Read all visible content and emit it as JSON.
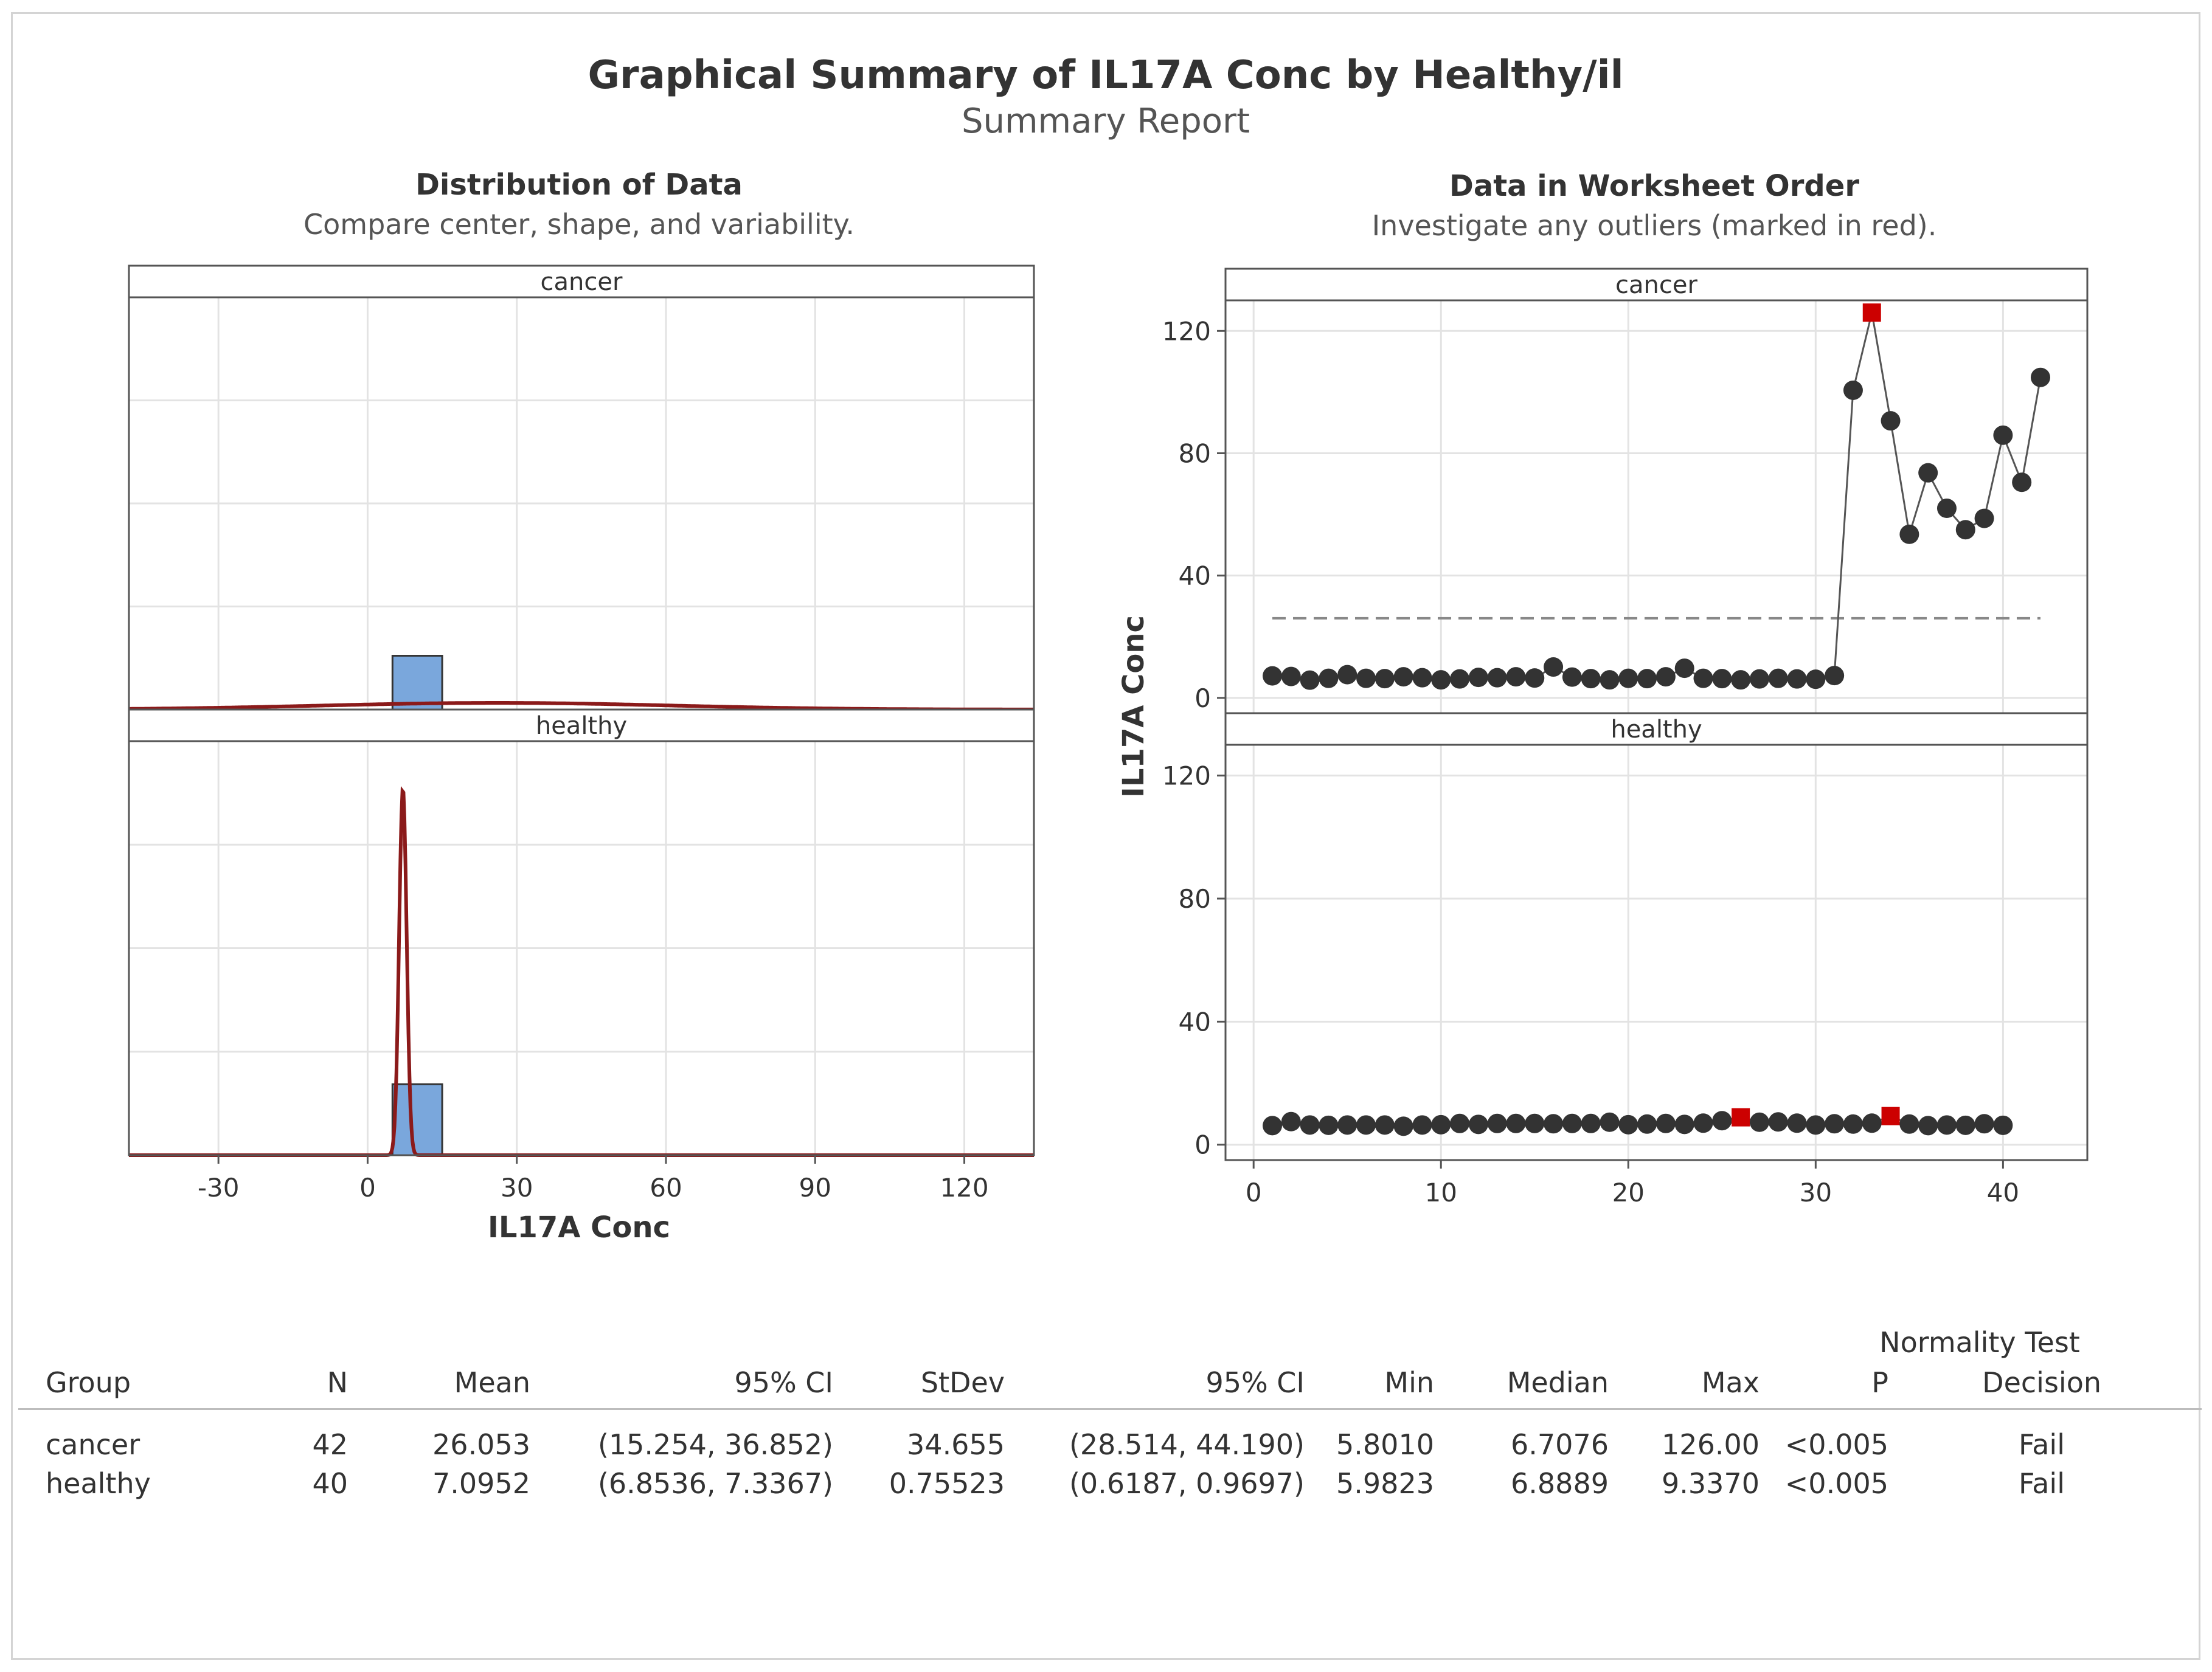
{
  "report": {
    "title": "Graphical Summary of IL17A Conc by Healthy/il",
    "subtitle": "Summary Report"
  },
  "colors": {
    "bar_fill": "#7aa7dc",
    "bar_stroke": "#333333",
    "normal_curve": "#8b1a1a",
    "point": "#333333",
    "outlier": "#cc0000",
    "mean_line": "#888888",
    "grid": "#e3e3e3"
  },
  "chart_data": [
    {
      "type": "bar",
      "name": "distribution",
      "title": "Distribution of Data",
      "subtitle": "Compare center, shape, and variability.",
      "xlabel": "IL17A Conc",
      "xlim": [
        -48,
        134
      ],
      "x_ticks": [
        -30,
        0,
        30,
        60,
        90,
        120
      ],
      "ylim": [
        0,
        1.05
      ],
      "bin_width": 10,
      "grid": true,
      "panels": [
        {
          "label": "cancer",
          "bins": [
            {
              "x0": 5,
              "x1": 15,
              "height": 0.137
            }
          ],
          "curve": {
            "type": "normal",
            "mean": 26.053,
            "sd": 34.655,
            "peak": 0.017
          }
        },
        {
          "label": "healthy",
          "bins": [
            {
              "x0": 5,
              "x1": 15,
              "height": 0.18
            }
          ],
          "curve": {
            "type": "normal",
            "mean": 7.0952,
            "sd": 0.75523,
            "peak": 0.93
          }
        }
      ]
    },
    {
      "type": "scatter",
      "name": "worksheet_order",
      "title": "Data in Worksheet Order",
      "subtitle": "Investigate any outliers (marked in red).",
      "ylabel": "IL17A Conc",
      "xlim": [
        -1.5,
        44.5
      ],
      "ylim": [
        -5,
        130
      ],
      "x_ticks": [
        0,
        10,
        20,
        30,
        40
      ],
      "y_ticks": [
        0,
        40,
        80,
        120
      ],
      "grid": true,
      "panels": [
        {
          "label": "cancer",
          "mean": 26.053,
          "values": [
            7.2,
            7.0,
            5.8,
            6.4,
            7.6,
            6.4,
            6.3,
            6.9,
            6.6,
            5.9,
            6.2,
            6.7,
            6.6,
            6.9,
            6.5,
            10.1,
            6.8,
            6.3,
            5.9,
            6.4,
            6.3,
            6.9,
            9.7,
            6.4,
            6.3,
            5.9,
            6.2,
            6.4,
            6.2,
            6.1,
            7.3,
            100.6,
            126.0,
            90.6,
            53.5,
            73.6,
            62.0,
            55.0,
            58.7,
            85.9,
            70.5,
            104.8
          ],
          "outliers": [
            33
          ]
        },
        {
          "label": "healthy",
          "mean": 7.0952,
          "values": [
            6.2,
            7.5,
            6.4,
            6.3,
            6.4,
            6.4,
            6.4,
            6.0,
            6.4,
            6.5,
            6.9,
            6.6,
            6.9,
            6.9,
            6.9,
            6.8,
            6.9,
            6.9,
            7.3,
            6.5,
            6.7,
            6.9,
            6.6,
            7.0,
            7.8,
            8.9,
            7.3,
            7.4,
            7.0,
            6.4,
            6.8,
            6.7,
            7.0,
            9.3,
            6.7,
            6.2,
            6.4,
            6.3,
            6.8,
            6.3
          ],
          "outliers": [
            26,
            34
          ]
        }
      ]
    }
  ],
  "stats_table": {
    "group_header": "Normality Test",
    "columns": [
      "Group",
      "N",
      "Mean",
      "95% CI",
      "StDev",
      "95% CI",
      "Min",
      "Median",
      "Max",
      "P",
      "Decision"
    ],
    "rows": [
      [
        "cancer",
        "42",
        "26.053",
        "(15.254, 36.852)",
        "34.655",
        "(28.514, 44.190)",
        "5.8010",
        "6.7076",
        "126.00",
        "<0.005",
        "Fail"
      ],
      [
        "healthy",
        "40",
        "7.0952",
        "(6.8536, 7.3367)",
        "0.75523",
        "(0.6187, 0.9697)",
        "5.9823",
        "6.8889",
        "9.3370",
        "<0.005",
        "Fail"
      ]
    ]
  }
}
